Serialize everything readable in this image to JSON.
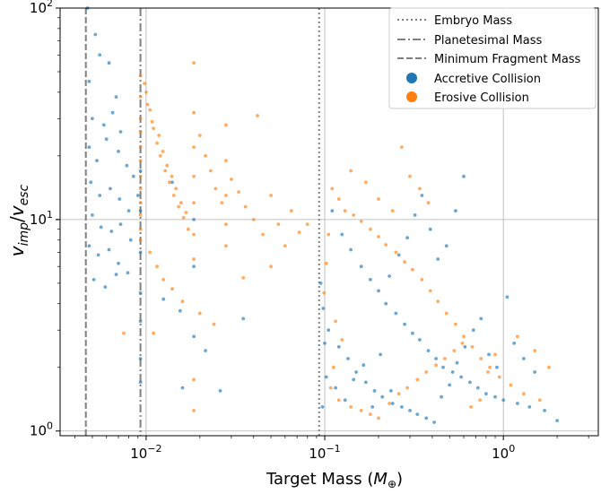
{
  "chart_data": {
    "type": "scatter",
    "x_scale": "log",
    "y_scale": "log",
    "xlim": [
      0.0033,
      3.4
    ],
    "ylim": [
      0.95,
      100
    ],
    "xlabel": "Target Mass (M⊕)",
    "ylabel": "vimp/vesc",
    "x_tick_labels": [
      {
        "value": 0.01,
        "base": "10",
        "exp": "−2"
      },
      {
        "value": 0.1,
        "base": "10",
        "exp": "−1"
      },
      {
        "value": 1,
        "base": "10",
        "exp": "0"
      }
    ],
    "y_tick_labels": [
      {
        "value": 1,
        "base": "10",
        "exp": "0"
      },
      {
        "value": 10,
        "base": "10",
        "exp": "1"
      },
      {
        "value": 100,
        "base": "10",
        "exp": "2"
      }
    ],
    "grid": true,
    "legend_position": "top-right",
    "reference_lines": [
      {
        "name": "Embryo Mass",
        "x": 0.093,
        "style": "dotted",
        "color": "#808080"
      },
      {
        "name": "Planetesimal Mass",
        "x": 0.0093,
        "style": "dashdot",
        "color": "#808080"
      },
      {
        "name": "Minimum Fragment Mass",
        "x": 0.0046,
        "style": "dashed",
        "color": "#808080"
      }
    ],
    "series": [
      {
        "name": "Accretive Collision",
        "color": "#1f77b4",
        "points": [
          [
            0.0047,
            100
          ],
          [
            0.0052,
            75
          ],
          [
            0.0055,
            60
          ],
          [
            0.0048,
            45
          ],
          [
            0.0062,
            55
          ],
          [
            0.0068,
            38
          ],
          [
            0.005,
            30
          ],
          [
            0.0058,
            28
          ],
          [
            0.0065,
            32
          ],
          [
            0.0072,
            26
          ],
          [
            0.0048,
            22
          ],
          [
            0.0053,
            19
          ],
          [
            0.006,
            24
          ],
          [
            0.007,
            21
          ],
          [
            0.0078,
            18
          ],
          [
            0.0085,
            16
          ],
          [
            0.0049,
            15
          ],
          [
            0.0055,
            13
          ],
          [
            0.0063,
            14
          ],
          [
            0.0071,
            12.5
          ],
          [
            0.008,
            11
          ],
          [
            0.009,
            13
          ],
          [
            0.005,
            10.5
          ],
          [
            0.0056,
            9.2
          ],
          [
            0.0064,
            8.8
          ],
          [
            0.0072,
            9.5
          ],
          [
            0.0082,
            8
          ],
          [
            0.0048,
            7.5
          ],
          [
            0.0054,
            6.8
          ],
          [
            0.0062,
            7.2
          ],
          [
            0.007,
            6.2
          ],
          [
            0.0079,
            5.6
          ],
          [
            0.0051,
            5.2
          ],
          [
            0.0059,
            4.8
          ],
          [
            0.0068,
            5.5
          ],
          [
            0.0093,
            17
          ],
          [
            0.0093,
            11
          ],
          [
            0.0093,
            7
          ],
          [
            0.0093,
            4.5
          ],
          [
            0.0093,
            3.3
          ],
          [
            0.0093,
            2.2
          ],
          [
            0.0093,
            1.7
          ],
          [
            0.014,
            15
          ],
          [
            0.0185,
            10
          ],
          [
            0.0185,
            6
          ],
          [
            0.0185,
            2.8
          ],
          [
            0.026,
            1.55
          ],
          [
            0.0125,
            4.2
          ],
          [
            0.0155,
            3.7
          ],
          [
            0.0215,
            2.4
          ],
          [
            0.035,
            3.4
          ],
          [
            0.016,
            1.6
          ],
          [
            0.11,
            11
          ],
          [
            0.125,
            8.5
          ],
          [
            0.14,
            7.2
          ],
          [
            0.16,
            6
          ],
          [
            0.18,
            5.2
          ],
          [
            0.2,
            4.6
          ],
          [
            0.22,
            4
          ],
          [
            0.25,
            3.6
          ],
          [
            0.28,
            3.2
          ],
          [
            0.31,
            2.9
          ],
          [
            0.34,
            2.7
          ],
          [
            0.38,
            2.4
          ],
          [
            0.42,
            2.2
          ],
          [
            0.46,
            2.0
          ],
          [
            0.52,
            1.9
          ],
          [
            0.58,
            1.8
          ],
          [
            0.65,
            1.7
          ],
          [
            0.72,
            1.6
          ],
          [
            0.8,
            1.5
          ],
          [
            0.9,
            1.45
          ],
          [
            1.0,
            1.4
          ],
          [
            1.2,
            1.35
          ],
          [
            1.4,
            1.3
          ],
          [
            1.7,
            1.25
          ],
          [
            2.0,
            1.12
          ],
          [
            0.105,
            3
          ],
          [
            0.12,
            2.5
          ],
          [
            0.135,
            2.2
          ],
          [
            0.15,
            1.9
          ],
          [
            0.17,
            1.7
          ],
          [
            0.19,
            1.55
          ],
          [
            0.21,
            1.45
          ],
          [
            0.24,
            1.35
          ],
          [
            0.27,
            1.3
          ],
          [
            0.3,
            1.25
          ],
          [
            0.33,
            1.2
          ],
          [
            0.37,
            1.15
          ],
          [
            0.41,
            1.1
          ],
          [
            0.45,
            1.45
          ],
          [
            0.5,
            1.65
          ],
          [
            0.55,
            2.1
          ],
          [
            0.61,
            2.5
          ],
          [
            0.68,
            3.0
          ],
          [
            0.75,
            3.4
          ],
          [
            0.83,
            2.3
          ],
          [
            0.92,
            2.0
          ],
          [
            1.05,
            4.3
          ],
          [
            1.15,
            2.6
          ],
          [
            1.3,
            2.2
          ],
          [
            1.5,
            1.9
          ],
          [
            0.6,
            16
          ],
          [
            0.54,
            11
          ],
          [
            0.48,
            7.5
          ],
          [
            0.43,
            6.5
          ],
          [
            0.39,
            9
          ],
          [
            0.35,
            13
          ],
          [
            0.32,
            10.5
          ],
          [
            0.29,
            8.2
          ],
          [
            0.26,
            6.8
          ],
          [
            0.23,
            5.4
          ],
          [
            0.095,
            5.0
          ],
          [
            0.098,
            3.8
          ],
          [
            0.1,
            2.6
          ],
          [
            0.102,
            1.8
          ],
          [
            0.097,
            1.3
          ],
          [
            0.115,
            1.6
          ],
          [
            0.13,
            1.4
          ],
          [
            0.145,
            1.75
          ],
          [
            0.165,
            2.05
          ],
          [
            0.185,
            1.3
          ],
          [
            0.205,
            2.3
          ],
          [
            0.235,
            1.55
          ]
        ]
      },
      {
        "name": "Erosive Collision",
        "color": "#ff7f0e",
        "points": [
          [
            0.0093,
            48
          ],
          [
            0.0093,
            38
          ],
          [
            0.0093,
            30
          ],
          [
            0.0093,
            26
          ],
          [
            0.0093,
            22
          ],
          [
            0.0093,
            19
          ],
          [
            0.0093,
            16
          ],
          [
            0.0093,
            14
          ],
          [
            0.0093,
            12
          ],
          [
            0.0093,
            10.5
          ],
          [
            0.0093,
            9
          ],
          [
            0.0093,
            8
          ],
          [
            0.01,
            40
          ],
          [
            0.0105,
            33
          ],
          [
            0.011,
            27
          ],
          [
            0.0115,
            23
          ],
          [
            0.012,
            20
          ],
          [
            0.0128,
            17
          ],
          [
            0.0135,
            15
          ],
          [
            0.0143,
            13
          ],
          [
            0.0152,
            11.5
          ],
          [
            0.0162,
            10.2
          ],
          [
            0.0172,
            9
          ],
          [
            0.0185,
            32
          ],
          [
            0.0185,
            22
          ],
          [
            0.0185,
            16
          ],
          [
            0.0185,
            12
          ],
          [
            0.0185,
            8.5
          ],
          [
            0.0185,
            6.5
          ],
          [
            0.0185,
            55
          ],
          [
            0.02,
            25
          ],
          [
            0.0215,
            20
          ],
          [
            0.023,
            17
          ],
          [
            0.0245,
            14
          ],
          [
            0.0265,
            12
          ],
          [
            0.028,
            28
          ],
          [
            0.028,
            19
          ],
          [
            0.028,
            13
          ],
          [
            0.028,
            9.5
          ],
          [
            0.028,
            7.5
          ],
          [
            0.03,
            15.5
          ],
          [
            0.033,
            13.5
          ],
          [
            0.036,
            11.5
          ],
          [
            0.04,
            10
          ],
          [
            0.042,
            31
          ],
          [
            0.045,
            8.5
          ],
          [
            0.05,
            13
          ],
          [
            0.055,
            9.5
          ],
          [
            0.06,
            7.5
          ],
          [
            0.065,
            11
          ],
          [
            0.072,
            8.7
          ],
          [
            0.08,
            9.5
          ],
          [
            0.0105,
            7
          ],
          [
            0.0115,
            6
          ],
          [
            0.0125,
            5.2
          ],
          [
            0.014,
            4.7
          ],
          [
            0.016,
            4.1
          ],
          [
            0.02,
            3.6
          ],
          [
            0.024,
            3.2
          ],
          [
            0.011,
            2.9
          ],
          [
            0.0075,
            2.9
          ],
          [
            0.0185,
            1.25
          ],
          [
            0.0185,
            1.75
          ],
          [
            0.05,
            6
          ],
          [
            0.035,
            5.3
          ],
          [
            0.0098,
            44
          ],
          [
            0.0102,
            35
          ],
          [
            0.0108,
            29
          ],
          [
            0.0118,
            25
          ],
          [
            0.0124,
            21
          ],
          [
            0.0131,
            18
          ],
          [
            0.0139,
            16
          ],
          [
            0.0147,
            14
          ],
          [
            0.0157,
            12
          ],
          [
            0.0167,
            10.8
          ],
          [
            0.11,
            14
          ],
          [
            0.12,
            12.5
          ],
          [
            0.13,
            11
          ],
          [
            0.145,
            10.5
          ],
          [
            0.16,
            9.8
          ],
          [
            0.18,
            9
          ],
          [
            0.2,
            8.3
          ],
          [
            0.22,
            7.6
          ],
          [
            0.25,
            7
          ],
          [
            0.28,
            6.3
          ],
          [
            0.31,
            5.8
          ],
          [
            0.35,
            5.2
          ],
          [
            0.39,
            4.6
          ],
          [
            0.43,
            4.1
          ],
          [
            0.48,
            3.6
          ],
          [
            0.54,
            3.2
          ],
          [
            0.6,
            2.8
          ],
          [
            0.67,
            2.5
          ],
          [
            0.75,
            2.2
          ],
          [
            0.84,
            2.0
          ],
          [
            0.95,
            1.8
          ],
          [
            1.1,
            1.65
          ],
          [
            1.3,
            1.5
          ],
          [
            1.6,
            1.4
          ],
          [
            0.14,
            17
          ],
          [
            0.17,
            15
          ],
          [
            0.2,
            12.5
          ],
          [
            0.24,
            11
          ],
          [
            0.27,
            22
          ],
          [
            0.3,
            16
          ],
          [
            0.34,
            14
          ],
          [
            0.38,
            12
          ],
          [
            0.12,
            1.4
          ],
          [
            0.14,
            1.3
          ],
          [
            0.16,
            1.25
          ],
          [
            0.18,
            1.2
          ],
          [
            0.2,
            1.15
          ],
          [
            0.23,
            1.35
          ],
          [
            0.26,
            1.5
          ],
          [
            0.29,
            1.6
          ],
          [
            0.33,
            1.75
          ],
          [
            0.37,
            1.9
          ],
          [
            0.42,
            2.05
          ],
          [
            0.47,
            2.2
          ],
          [
            0.53,
            2.4
          ],
          [
            0.59,
            2.6
          ],
          [
            0.66,
            1.3
          ],
          [
            0.74,
            1.4
          ],
          [
            0.82,
            1.9
          ],
          [
            0.9,
            2.3
          ],
          [
            1.2,
            2.8
          ],
          [
            1.5,
            2.4
          ],
          [
            1.8,
            2.0
          ],
          [
            0.105,
            8.5
          ],
          [
            0.102,
            6.2
          ],
          [
            0.099,
            4.5
          ],
          [
            0.115,
            3.3
          ],
          [
            0.125,
            2.7
          ],
          [
            0.112,
            2.0
          ],
          [
            0.108,
            1.6
          ]
        ]
      }
    ]
  },
  "legend": {
    "items": [
      {
        "label": "Embryo Mass",
        "marker": "dotted"
      },
      {
        "label": "Planetesimal Mass",
        "marker": "dashdot"
      },
      {
        "label": "Minimum Fragment Mass",
        "marker": "dashed"
      },
      {
        "label": "Accretive Collision",
        "marker": "circle-blue"
      },
      {
        "label": "Erosive Collision",
        "marker": "circle-orange"
      }
    ]
  }
}
